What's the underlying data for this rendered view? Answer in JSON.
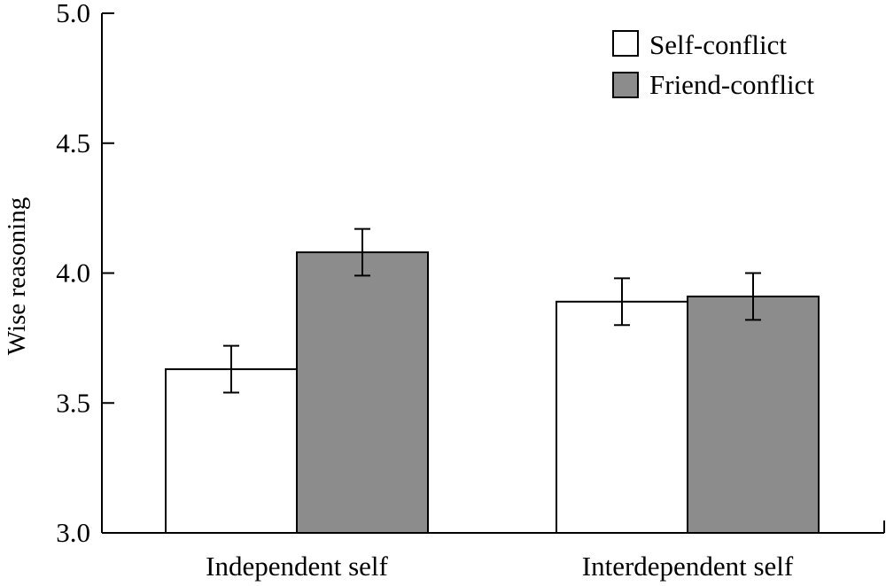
{
  "chart_data": {
    "type": "bar",
    "title": "",
    "xlabel": "",
    "ylabel": "Wise reasoning",
    "ylim": [
      3.0,
      5.0
    ],
    "yticks": [
      "3.0",
      "3.5",
      "4.0",
      "4.5",
      "5.0"
    ],
    "categories": [
      "Independent self",
      "Interdependent self"
    ],
    "series": [
      {
        "name": "Self-conflict",
        "color": "#ffffff",
        "values": [
          3.63,
          3.89
        ],
        "error": [
          0.09,
          0.09
        ]
      },
      {
        "name": "Friend-conflict",
        "color": "#8c8c8c",
        "values": [
          4.08,
          3.91
        ],
        "error": [
          0.09,
          0.09
        ]
      }
    ],
    "grid": false,
    "legend_position": "top-right"
  }
}
